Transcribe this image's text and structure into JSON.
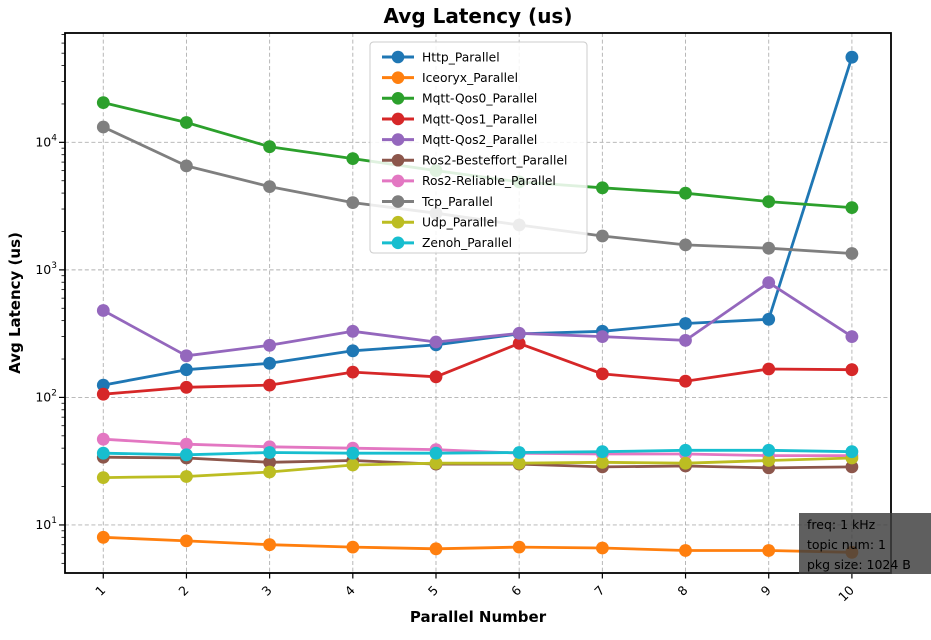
{
  "title": {
    "text": "Avg Latency  (us)",
    "color": "#2646a8"
  },
  "annotation": {
    "lines": [
      "freq: 1 kHz",
      "topic num: 1",
      "pkg size: 1024 B"
    ],
    "bg_color": "#3f3f3f",
    "bg_opacity": 0.83,
    "text_color": "#ffffff"
  },
  "chart_data": {
    "type": "line",
    "x": [
      1,
      2,
      3,
      4,
      5,
      6,
      7,
      8,
      9,
      10
    ],
    "x_ticks": [
      1,
      2,
      3,
      4,
      5,
      6,
      7,
      8,
      9,
      10
    ],
    "y_ticks": [
      10,
      100,
      1000,
      10000
    ],
    "xlabel": "Parallel Number",
    "ylabel": "Avg Latency (us)",
    "yscale": "log",
    "xlim": [
      0.54,
      10.47
    ],
    "ylim": [
      4.2,
      72000
    ],
    "grid": true,
    "grid_color": "#b0b0b0",
    "legend_position": "upper center inside",
    "series": [
      {
        "name": "Http_Parallel",
        "color": "#1f77b4",
        "values": [
          125,
          165,
          185,
          232,
          258,
          315,
          330,
          380,
          410,
          46500
        ]
      },
      {
        "name": "Iceoryx_Parallel",
        "color": "#ff7f0e",
        "values": [
          8.0,
          7.5,
          7.0,
          6.7,
          6.5,
          6.7,
          6.6,
          6.3,
          6.3,
          6.1
        ]
      },
      {
        "name": "Mqtt-Qos0_Parallel",
        "color": "#2ca02c",
        "values": [
          20500,
          14300,
          9250,
          7450,
          6000,
          4900,
          4400,
          3990,
          3430,
          3080
        ]
      },
      {
        "name": "Mqtt-Qos1_Parallel",
        "color": "#d62728",
        "values": [
          106,
          120,
          125,
          158,
          145,
          265,
          153,
          134,
          167,
          165
        ]
      },
      {
        "name": "Mqtt-Qos2_Parallel",
        "color": "#9467bd",
        "values": [
          480,
          212,
          256,
          330,
          272,
          318,
          300,
          280,
          795,
          300
        ]
      },
      {
        "name": "Ros2-Besteffort_Parallel",
        "color": "#8c564b",
        "values": [
          34,
          33.5,
          31,
          32,
          30,
          30,
          28.5,
          29,
          28,
          28.5
        ]
      },
      {
        "name": "Ros2-Reliable_Parallel",
        "color": "#e377c2",
        "values": [
          47,
          43,
          41,
          40,
          39,
          36.5,
          36,
          36,
          35,
          35
        ]
      },
      {
        "name": "Tcp_Parallel",
        "color": "#7f7f7f",
        "values": [
          13200,
          6540,
          4500,
          3370,
          2780,
          2250,
          1845,
          1570,
          1480,
          1345
        ]
      },
      {
        "name": "Udp_Parallel",
        "color": "#bcbd22",
        "values": [
          23.5,
          24,
          26,
          29.5,
          30.5,
          30.5,
          31,
          30.5,
          32,
          33.5
        ]
      },
      {
        "name": "Zenoh_Parallel",
        "color": "#17becf",
        "values": [
          36.5,
          35.5,
          37,
          36.5,
          36.5,
          37,
          37.5,
          38.5,
          38.5,
          37.5
        ]
      }
    ]
  }
}
